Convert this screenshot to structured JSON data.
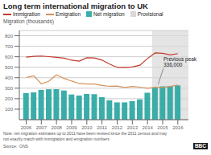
{
  "chart_data": {
    "type": "combo",
    "title": "Long term international migration to UK",
    "y_label": "Migration (thousands)",
    "x": [
      2006,
      2006.5,
      2007,
      2007.5,
      2008,
      2008.5,
      2009,
      2009.5,
      2010,
      2010.5,
      2011,
      2011.5,
      2012,
      2012.5,
      2013,
      2013.5,
      2014,
      2014.5,
      2015,
      2015.5,
      2016
    ],
    "series": [
      {
        "name": "Immigration",
        "type": "line",
        "color": "#c0392b",
        "values": [
          596,
          604,
          607,
          601,
          595,
          587,
          567,
          558,
          590,
          589,
          568,
          530,
          498,
          497,
          503,
          520,
          583,
          636,
          633,
          618,
          630
        ]
      },
      {
        "name": "Emigration",
        "type": "line",
        "color": "#d4915a",
        "values": [
          402,
          418,
          341,
          368,
          427,
          393,
          368,
          345,
          340,
          340,
          326,
          318,
          320,
          308,
          317,
          310,
          300,
          307,
          307,
          317,
          330
        ]
      },
      {
        "name": "Net migration",
        "type": "bar",
        "color": "#3aada8",
        "values": [
          253,
          260,
          284,
          290,
          291,
          278,
          240,
          230,
          245,
          243,
          215,
          185,
          165,
          165,
          176,
          193,
          257,
          308,
          318,
          320,
          327
        ]
      }
    ],
    "shaded_regions": [
      {
        "name": "Provisional",
        "x": [
          2014.3,
          2016.7
        ],
        "color": "#d8d8d8"
      }
    ],
    "annotations": [
      {
        "text": "Previous peak\n336,000",
        "x": 2014.7,
        "y": 336,
        "text_x": 2015.05,
        "text_y": 490
      }
    ],
    "notes": [
      "Note: net migration estimates up to 2011 have been revised since the 2011 census and may",
      "not exactly match with immigration and emigration numbers"
    ],
    "source": "Source:  ONS",
    "credit": "BBC",
    "xlim": [
      2005.55,
      2016.7
    ],
    "xticks": [
      2006,
      2007,
      2008,
      2009,
      2010,
      2011,
      2012,
      2013,
      2014,
      2015,
      2016
    ],
    "ylim": [
      0,
      850
    ],
    "yticks": [
      100,
      200,
      300,
      400,
      500,
      600,
      700,
      800
    ],
    "grid": true,
    "legend": "top"
  }
}
